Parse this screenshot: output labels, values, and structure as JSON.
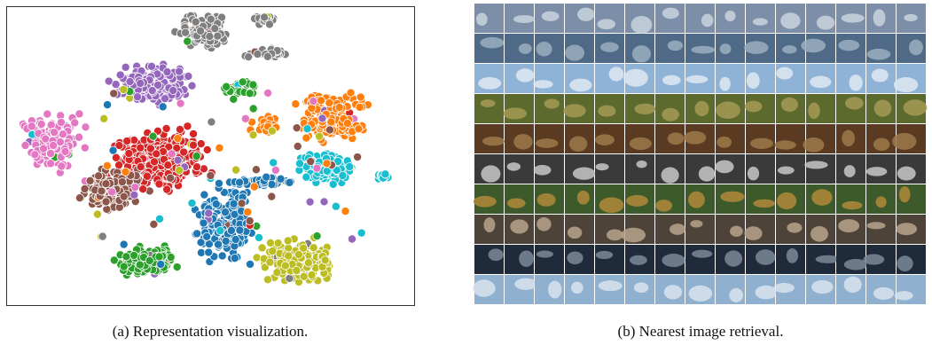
{
  "figure": {
    "panels": [
      {
        "caption": "(a) Representation visualization."
      },
      {
        "caption": "(b) Nearest image retrieval."
      }
    ]
  }
}
